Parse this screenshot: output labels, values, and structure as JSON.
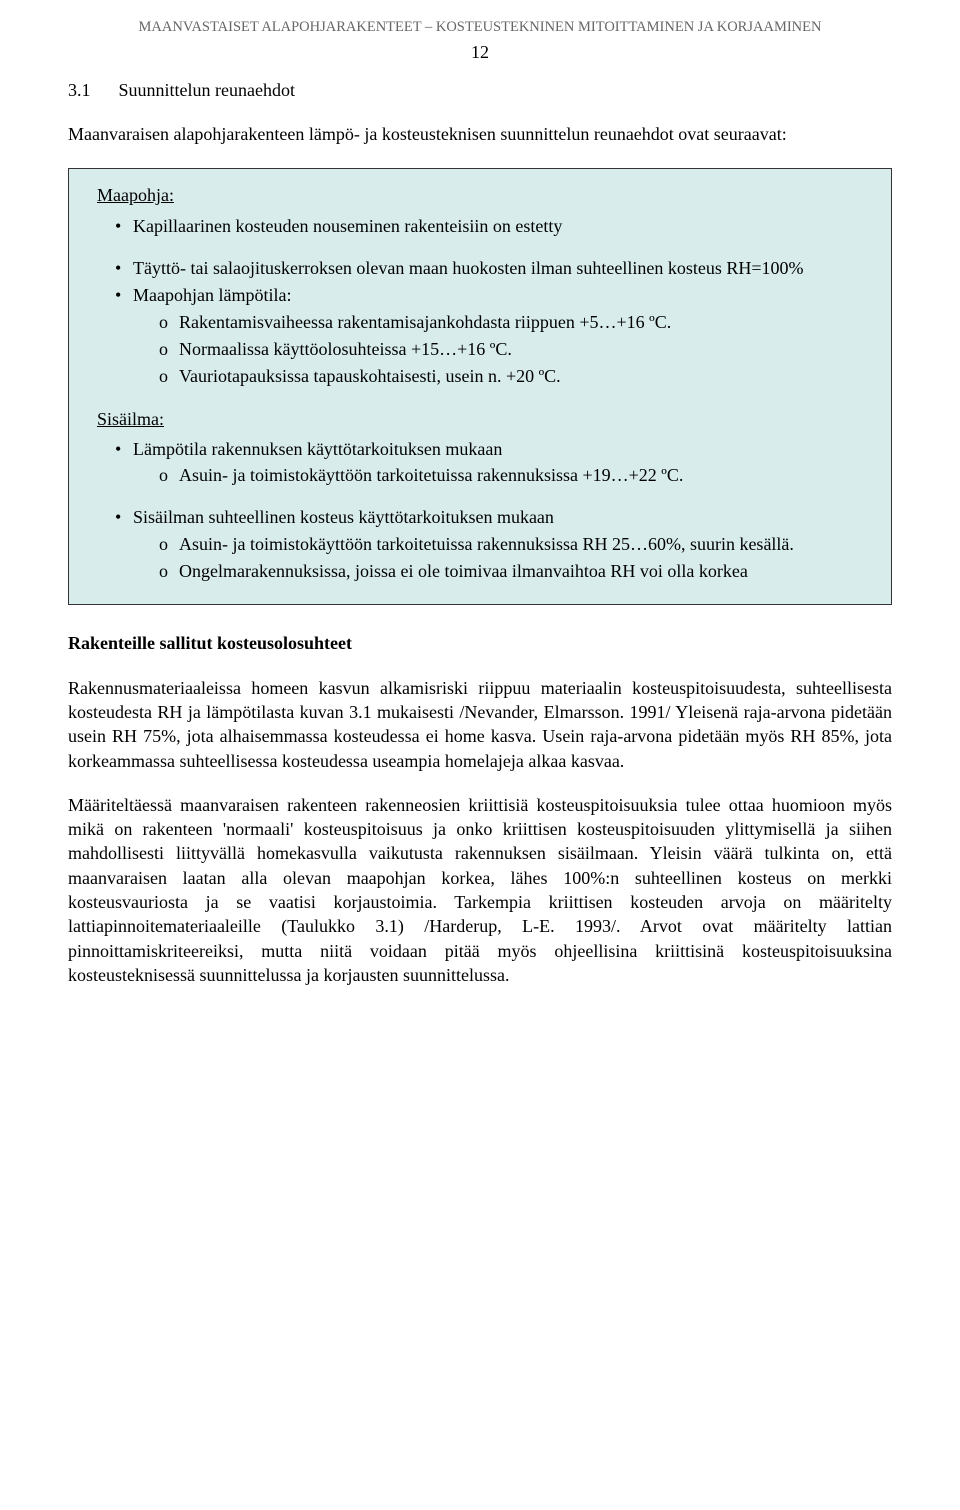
{
  "header": {
    "running_title": "MAANVASTAISET ALAPOHJARAKENTEET – KOSTEUSTEKNINEN MITOITTAMINEN JA KORJAAMINEN",
    "page_number": "12"
  },
  "section": {
    "number": "3.1",
    "title": "Suunnittelun reunaehdot"
  },
  "intro": "Maanvaraisen alapohjarakenteen lämpö- ja kosteusteknisen suunnittelun reunaehdot ovat seuraavat:",
  "box": {
    "maapohja_label": "Maapohja:",
    "maapohja_items": [
      "Kapillaarinen kosteuden nouseminen rakenteisiin on estetty",
      "Täyttö- tai salaojituskerroksen olevan maan huokosten ilman suhteellinen kosteus RH=100%",
      "Maapohjan lämpötila:"
    ],
    "maapohja_sub": [
      "Rakentamisvaiheessa rakentamisajankohdasta riippuen +5…+16 ºC.",
      "Normaalissa käyttöolosuhteissa +15…+16 ºC.",
      "Vauriotapauksissa tapauskohtaisesti, usein n. +20 ºC."
    ],
    "sisailma_label": "Sisäilma:",
    "sisailma_item1_main": "Lämpötila rakennuksen käyttötarkoituksen mukaan",
    "sisailma_item1_sub": [
      "Asuin- ja toimistokäyttöön tarkoitetuissa rakennuksissa +19…+22 ºC."
    ],
    "sisailma_item2_main": "Sisäilman suhteellinen kosteus käyttötarkoituksen mukaan",
    "sisailma_item2_sub": [
      "Asuin- ja toimistokäyttöön tarkoitetuissa rakennuksissa RH 25…60%, suurin kesällä.",
      "Ongelmarakennuksissa, joissa ei ole toimivaa ilmanvaihtoa RH voi olla korkea"
    ]
  },
  "subheading": "Rakenteille sallitut kosteusolosuhteet",
  "para1": "Rakennusmateriaaleissa homeen kasvun alkamisriski riippuu materiaalin kosteuspitoisuudesta, suhteellisesta kosteudesta RH ja lämpötilasta kuvan 3.1 mukaisesti /Nevander, Elmarsson. 1991/ Yleisenä raja-arvona pidetään usein RH 75%, jota alhaisemmassa kosteudessa ei home kasva. Usein raja-arvona pidetään myös RH 85%, jota korkeammassa suhteellisessa kosteudessa useampia homelajeja alkaa kasvaa.",
  "para2": "Määriteltäessä maanvaraisen rakenteen rakenneosien kriittisiä kosteuspitoisuuksia tulee ottaa huomioon myös mikä on rakenteen 'normaali' kosteuspitoisuus ja onko kriittisen kosteuspitoisuuden ylittymisellä ja siihen mahdollisesti liittyvällä homekasvulla vaikutusta rakennuksen sisäilmaan. Yleisin väärä tulkinta on, että maanvaraisen laatan alla olevan maapohjan korkea, lähes 100%:n suhteellinen kosteus on merkki kosteusvauriosta ja se vaatisi korjaustoimia. Tarkempia kriittisen kosteuden arvoja on määritelty lattiapinnoitemateriaaleille (Taulukko 3.1) /Harderup, L-E. 1993/. Arvot ovat määritelty lattian pinnoittamiskriteereiksi, mutta niitä voidaan pitää myös ohjeellisina kriittisinä kosteuspitoisuuksina kosteusteknisessä suunnittelussa ja korjausten suunnittelussa."
}
